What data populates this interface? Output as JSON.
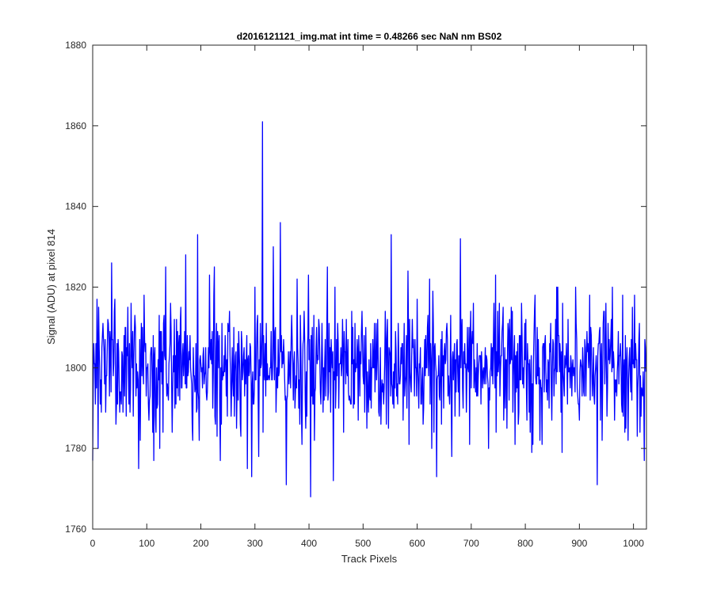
{
  "chart_data": {
    "type": "line",
    "title": "d2016121121_img.mat int time = 0.48266 sec  NaN nm BS02",
    "xlabel": "Track Pixels",
    "ylabel": "Signal (ADU) at pixel 814",
    "xlim": [
      0,
      1024
    ],
    "ylim": [
      1760,
      1880
    ],
    "xticks": [
      0,
      100,
      200,
      300,
      400,
      500,
      600,
      700,
      800,
      900,
      1000
    ],
    "yticks": [
      1760,
      1780,
      1800,
      1820,
      1840,
      1860,
      1880
    ],
    "grid": false,
    "legend": "none",
    "series_color": "#0000ff",
    "n_points": 1024,
    "baseline": 1800,
    "noise_std": 8,
    "notable_points": [
      {
        "x": 0,
        "y": 1777
      },
      {
        "x": 35,
        "y": 1826
      },
      {
        "x": 85,
        "y": 1775
      },
      {
        "x": 113,
        "y": 1777
      },
      {
        "x": 135,
        "y": 1825
      },
      {
        "x": 172,
        "y": 1828
      },
      {
        "x": 194,
        "y": 1833
      },
      {
        "x": 216,
        "y": 1823
      },
      {
        "x": 236,
        "y": 1777
      },
      {
        "x": 300,
        "y": 1820
      },
      {
        "x": 307,
        "y": 1778
      },
      {
        "x": 314,
        "y": 1861
      },
      {
        "x": 334,
        "y": 1830
      },
      {
        "x": 347,
        "y": 1836
      },
      {
        "x": 358,
        "y": 1771
      },
      {
        "x": 378,
        "y": 1822
      },
      {
        "x": 403,
        "y": 1768
      },
      {
        "x": 445,
        "y": 1772
      },
      {
        "x": 552,
        "y": 1833
      },
      {
        "x": 583,
        "y": 1824
      },
      {
        "x": 623,
        "y": 1822
      },
      {
        "x": 636,
        "y": 1773
      },
      {
        "x": 680,
        "y": 1832
      },
      {
        "x": 745,
        "y": 1823
      },
      {
        "x": 860,
        "y": 1820
      },
      {
        "x": 933,
        "y": 1771
      },
      {
        "x": 1020,
        "y": 1777
      }
    ]
  }
}
